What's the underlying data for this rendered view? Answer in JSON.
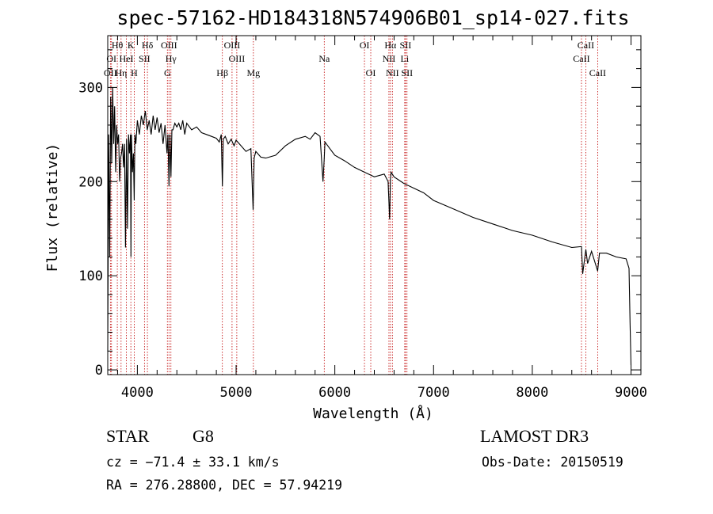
{
  "chart_data": {
    "type": "line",
    "title": "spec-57162-HD184318N574906B01_sp14-027.fits",
    "xlabel": "Wavelength (Å)",
    "ylabel": "Flux (relative)",
    "xlim": [
      3700,
      9100
    ],
    "ylim": [
      -5,
      355
    ],
    "xticks": [
      4000,
      5000,
      6000,
      7000,
      8000,
      9000
    ],
    "yticks": [
      0,
      100,
      200,
      300
    ],
    "grid": false,
    "series": [
      {
        "name": "flux",
        "x": [
          3700,
          3710,
          3720,
          3730,
          3740,
          3750,
          3760,
          3770,
          3780,
          3790,
          3800,
          3810,
          3820,
          3830,
          3840,
          3850,
          3860,
          3870,
          3880,
          3890,
          3900,
          3910,
          3920,
          3930,
          3935,
          3940,
          3950,
          3960,
          3968,
          3975,
          3985,
          4000,
          4020,
          4040,
          4060,
          4080,
          4100,
          4120,
          4140,
          4160,
          4180,
          4200,
          4220,
          4240,
          4260,
          4280,
          4300,
          4310,
          4320,
          4330,
          4340,
          4350,
          4360,
          4380,
          4400,
          4420,
          4440,
          4460,
          4480,
          4500,
          4550,
          4600,
          4650,
          4700,
          4750,
          4800,
          4830,
          4850,
          4861,
          4870,
          4890,
          4920,
          4950,
          4980,
          5000,
          5050,
          5100,
          5150,
          5172,
          5183,
          5200,
          5250,
          5300,
          5400,
          5500,
          5600,
          5700,
          5750,
          5800,
          5850,
          5880,
          5893,
          5900,
          5950,
          6000,
          6100,
          6200,
          6300,
          6400,
          6500,
          6540,
          6555,
          6563,
          6570,
          6600,
          6700,
          6800,
          6900,
          7000,
          7200,
          7400,
          7600,
          7800,
          8000,
          8200,
          8400,
          8498,
          8510,
          8542,
          8560,
          8600,
          8662,
          8680,
          8750,
          8850,
          8950,
          8980,
          8990,
          9000
        ],
        "y": [
          20,
          250,
          120,
          290,
          220,
          300,
          240,
          280,
          210,
          260,
          240,
          250,
          200,
          225,
          230,
          240,
          215,
          240,
          130,
          245,
          150,
          250,
          230,
          250,
          120,
          250,
          210,
          230,
          180,
          250,
          240,
          265,
          250,
          270,
          260,
          275,
          255,
          265,
          250,
          270,
          255,
          268,
          252,
          262,
          240,
          260,
          230,
          250,
          195,
          250,
          205,
          255,
          255,
          262,
          258,
          262,
          255,
          265,
          250,
          262,
          255,
          258,
          252,
          250,
          248,
          246,
          242,
          250,
          195,
          245,
          248,
          240,
          245,
          238,
          244,
          238,
          232,
          235,
          170,
          225,
          232,
          226,
          225,
          228,
          238,
          245,
          248,
          245,
          252,
          248,
          200,
          225,
          242,
          235,
          228,
          222,
          215,
          210,
          205,
          208,
          200,
          160,
          202,
          210,
          205,
          198,
          193,
          188,
          180,
          171,
          162,
          155,
          148,
          143,
          136,
          130,
          131,
          102,
          128,
          113,
          126,
          105,
          124,
          124,
          120,
          118,
          108,
          50,
          5
        ]
      }
    ],
    "lines": [
      {
        "label": "Hθ",
        "x": 3797,
        "row": 1
      },
      {
        "label": "OII",
        "x": 3727,
        "row": 3
      },
      {
        "label": "OI",
        "x": 3738,
        "row": 2
      },
      {
        "label": "HeI",
        "x": 3889,
        "row": 2
      },
      {
        "label": "Hη",
        "x": 3835,
        "row": 3
      },
      {
        "label": "K",
        "x": 3934,
        "row": 1
      },
      {
        "label": "H",
        "x": 3968,
        "row": 3
      },
      {
        "label": "SII",
        "x": 4072,
        "row": 2
      },
      {
        "label": "Hδ",
        "x": 4102,
        "row": 1
      },
      {
        "label": "OIII",
        "x": 4320,
        "row": 1
      },
      {
        "label": "Hγ",
        "x": 4340,
        "row": 2
      },
      {
        "label": "G",
        "x": 4304,
        "row": 3
      },
      {
        "label": "OIII",
        "x": 4959,
        "row": 1
      },
      {
        "label": "OIII",
        "x": 5007,
        "row": 2
      },
      {
        "label": "Hβ",
        "x": 4861,
        "row": 3
      },
      {
        "label": "Mg",
        "x": 5175,
        "row": 3
      },
      {
        "label": "Na",
        "x": 5893,
        "row": 2
      },
      {
        "label": "OI",
        "x": 6300,
        "row": 1
      },
      {
        "label": "OI",
        "x": 6364,
        "row": 3
      },
      {
        "label": "Hα",
        "x": 6563,
        "row": 1
      },
      {
        "label": "SII",
        "x": 6716,
        "row": 1
      },
      {
        "label": "NII",
        "x": 6548,
        "row": 2
      },
      {
        "label": "Li",
        "x": 6708,
        "row": 2
      },
      {
        "label": "NII",
        "x": 6583,
        "row": 3
      },
      {
        "label": "SII",
        "x": 6731,
        "row": 3
      },
      {
        "label": "CaII",
        "x": 8542,
        "row": 1
      },
      {
        "label": "CaII",
        "x": 8498,
        "row": 2
      },
      {
        "label": "CaII",
        "x": 8662,
        "row": 3
      }
    ]
  },
  "info": {
    "object_type": "STAR",
    "spectral_class": "G8",
    "survey": "LAMOST DR3",
    "redshift_line": "cz = −71.4 ± 33.1 km/s",
    "obs_date_line": "Obs-Date: 20150519",
    "coords_line": "RA = 276.28800, DEC =  57.94219"
  }
}
